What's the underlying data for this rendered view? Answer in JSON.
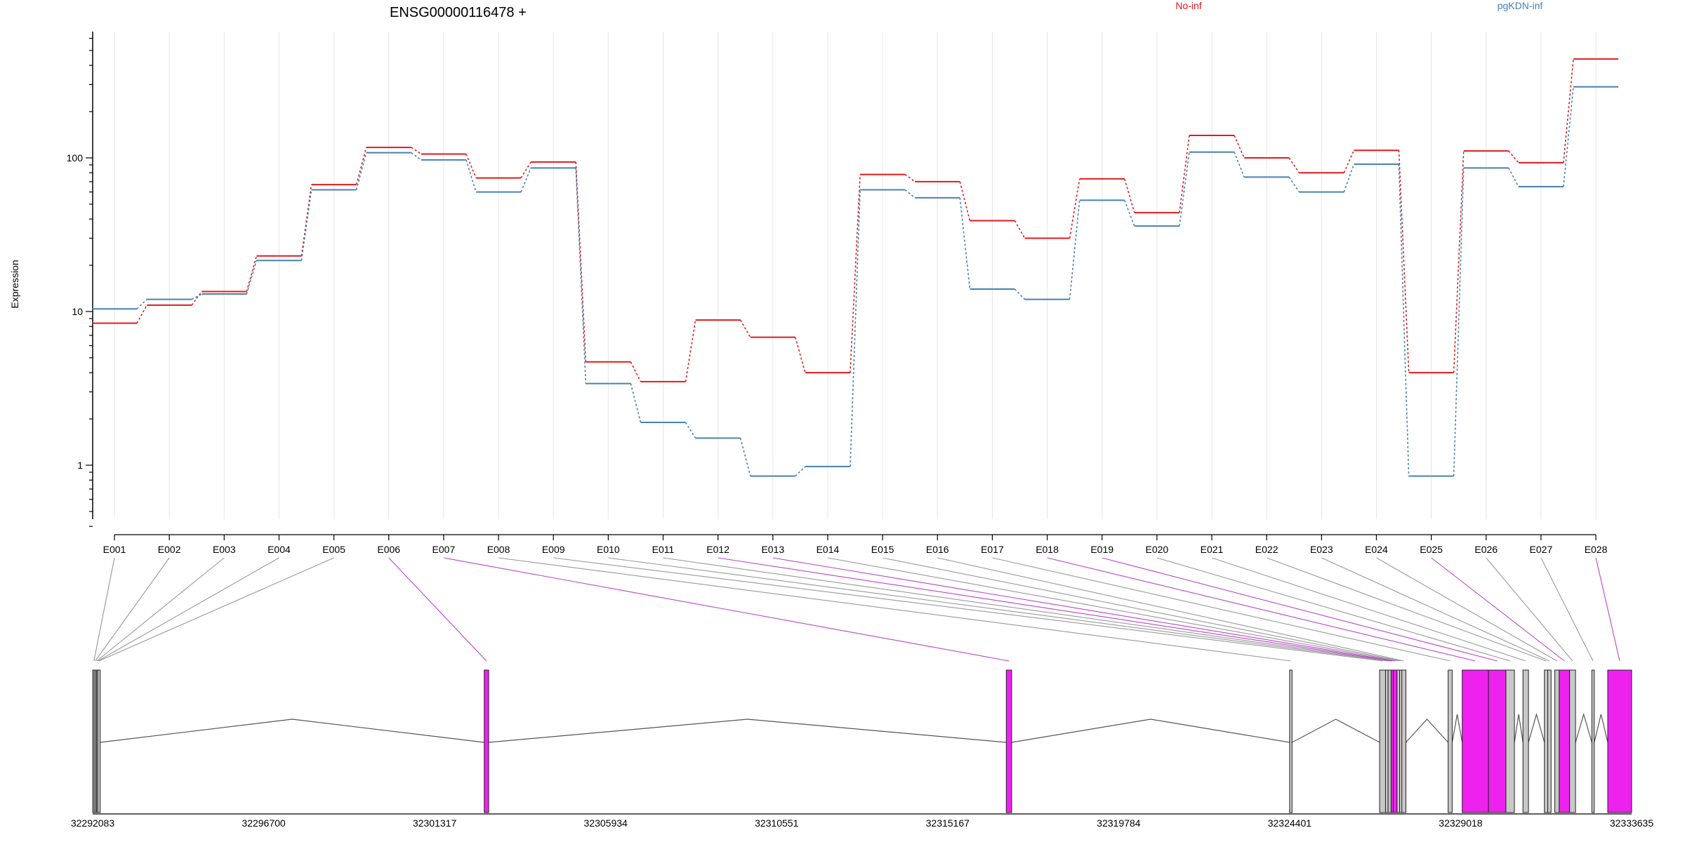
{
  "chart_data": {
    "type": "line",
    "title": "ENSG00000116478 +",
    "ylabel": "Expression",
    "yscale": "log",
    "ylim": [
      0.4,
      600
    ],
    "yticks": [
      "1",
      "10",
      "100"
    ],
    "grid": "vertical",
    "categories": [
      "E001",
      "E002",
      "E003",
      "E004",
      "E005",
      "E006",
      "E007",
      "E008",
      "E009",
      "E010",
      "E011",
      "E012",
      "E013",
      "E014",
      "E015",
      "E016",
      "E017",
      "E018",
      "E019",
      "E020",
      "E021",
      "E022",
      "E023",
      "E024",
      "E025",
      "E026",
      "E027",
      "E028"
    ],
    "series": [
      {
        "name": "No-inf",
        "color": "#e31a1c",
        "values": [
          8.4,
          11.0,
          13.5,
          23.0,
          67.0,
          117.0,
          106.0,
          74.0,
          94.0,
          4.7,
          3.5,
          8.8,
          6.8,
          4.0,
          78.0,
          70.0,
          39.0,
          30.0,
          73.0,
          44.0,
          140.0,
          100.0,
          80.0,
          112.0,
          4.0,
          111.0,
          93.0,
          440.0
        ]
      },
      {
        "name": "pgKDN-inf",
        "color": "#4682b4",
        "values": [
          10.4,
          12.0,
          13.0,
          21.5,
          62.0,
          108.0,
          97.0,
          60.0,
          86.0,
          3.4,
          1.9,
          1.5,
          0.85,
          0.98,
          62.0,
          55.0,
          14.0,
          12.0,
          53.0,
          36.0,
          109.0,
          75.0,
          60.0,
          91.0,
          0.85,
          86.0,
          65.0,
          290.0
        ]
      }
    ],
    "gene_track": {
      "xlabels": [
        "32292083",
        "32296700",
        "32301317",
        "32305934",
        "32310551",
        "32315167",
        "32319784",
        "32324401",
        "32329018",
        "32333635"
      ],
      "xlim": [
        32292083,
        32333635
      ],
      "highlight_color": "#ee22ee",
      "normal_color": "#c8c8c8",
      "exons": [
        {
          "id": "E001",
          "start": 32292083,
          "end": 32292120,
          "highlighted": false
        },
        {
          "id": "E002",
          "start": 32292120,
          "end": 32292160,
          "highlighted": false
        },
        {
          "id": "E003",
          "start": 32292160,
          "end": 32292190,
          "highlighted": false
        },
        {
          "id": "E004",
          "start": 32292190,
          "end": 32292220,
          "highlighted": false
        },
        {
          "id": "E005",
          "start": 32292220,
          "end": 32292250,
          "highlighted": false
        },
        {
          "id": "E006",
          "start": 32302655,
          "end": 32302775,
          "highlighted": true
        },
        {
          "id": "E007",
          "start": 32316750,
          "end": 32316895,
          "highlighted": true
        },
        {
          "id": "E008",
          "start": 32324400,
          "end": 32324460,
          "highlighted": false
        },
        {
          "id": "E009",
          "start": 32326830,
          "end": 32326990,
          "highlighted": false
        },
        {
          "id": "E010",
          "start": 32326990,
          "end": 32327060,
          "highlighted": false
        },
        {
          "id": "E011",
          "start": 32327060,
          "end": 32327140,
          "highlighted": false
        },
        {
          "id": "E012",
          "start": 32327140,
          "end": 32327200,
          "highlighted": true
        },
        {
          "id": "E013",
          "start": 32327200,
          "end": 32327300,
          "highlighted": true
        },
        {
          "id": "E014",
          "start": 32327300,
          "end": 32327370,
          "highlighted": false
        },
        {
          "id": "E015",
          "start": 32327370,
          "end": 32327430,
          "highlighted": false
        },
        {
          "id": "E016",
          "start": 32327430,
          "end": 32327540,
          "highlighted": false
        },
        {
          "id": "E017",
          "start": 32328680,
          "end": 32328790,
          "highlighted": false
        },
        {
          "id": "E018",
          "start": 32329060,
          "end": 32329770,
          "highlighted": true
        },
        {
          "id": "E019",
          "start": 32329770,
          "end": 32330240,
          "highlighted": true
        },
        {
          "id": "E020",
          "start": 32330240,
          "end": 32330470,
          "highlighted": false
        },
        {
          "id": "E021",
          "start": 32330700,
          "end": 32330850,
          "highlighted": false
        },
        {
          "id": "E022",
          "start": 32331280,
          "end": 32331370,
          "highlighted": false
        },
        {
          "id": "E023",
          "start": 32331370,
          "end": 32331460,
          "highlighted": false
        },
        {
          "id": "E024",
          "start": 32331560,
          "end": 32331680,
          "highlighted": false
        },
        {
          "id": "E025",
          "start": 32331680,
          "end": 32331960,
          "highlighted": true
        },
        {
          "id": "E026",
          "start": 32331960,
          "end": 32332120,
          "highlighted": false
        },
        {
          "id": "E027",
          "start": 32332560,
          "end": 32332620,
          "highlighted": false
        },
        {
          "id": "E028",
          "start": 32332990,
          "end": 32333635,
          "highlighted": true
        }
      ]
    }
  }
}
